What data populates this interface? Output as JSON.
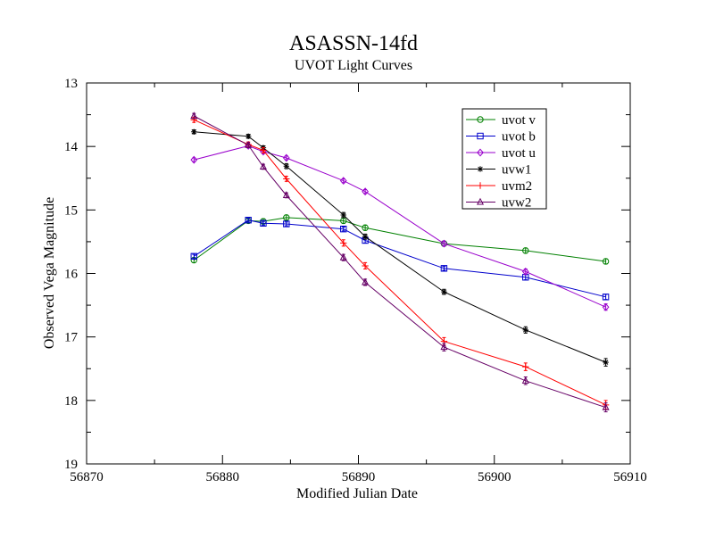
{
  "chart_data": {
    "type": "line",
    "title": "ASASSN-14fd",
    "subtitle": "UVOT Light Curves",
    "xlabel": "Modified Julian Date",
    "ylabel": "Observed Vega Magnitude",
    "xlim": [
      56870,
      56910
    ],
    "ylim": [
      13,
      19
    ],
    "y_inverted": true,
    "x_ticks": [
      56870,
      56880,
      56890,
      56900,
      56910
    ],
    "y_ticks": [
      13,
      14,
      15,
      16,
      17,
      18,
      19
    ],
    "legend_position": "top-right",
    "grid": false,
    "series": [
      {
        "name": "uvot v",
        "color": "#008000",
        "marker": "circle",
        "x": [
          56877.9,
          56881.9,
          56883.0,
          56884.7,
          56888.9,
          56890.5,
          56896.3,
          56902.3,
          56908.2
        ],
        "y": [
          15.79,
          15.17,
          15.18,
          15.12,
          15.17,
          15.28,
          15.53,
          15.64,
          15.81
        ],
        "err": [
          0.04,
          0.03,
          0.04,
          0.04,
          0.04,
          0.04,
          0.04,
          0.04,
          0.04
        ]
      },
      {
        "name": "uvot b",
        "color": "#0000cc",
        "marker": "square",
        "x": [
          56877.9,
          56881.9,
          56883.0,
          56884.7,
          56888.9,
          56890.5,
          56896.3,
          56902.3,
          56908.2
        ],
        "y": [
          15.73,
          15.16,
          15.21,
          15.22,
          15.3,
          15.48,
          15.92,
          16.06,
          16.37
        ],
        "err": [
          0.03,
          0.03,
          0.03,
          0.03,
          0.03,
          0.04,
          0.03,
          0.04,
          0.04
        ]
      },
      {
        "name": "uvot u",
        "color": "#9900cc",
        "marker": "diamond",
        "x": [
          56877.9,
          56881.9,
          56883.0,
          56884.7,
          56888.9,
          56890.5,
          56896.3,
          56902.3,
          56908.2
        ],
        "y": [
          14.21,
          13.99,
          14.08,
          14.18,
          14.54,
          14.71,
          15.53,
          15.97,
          16.53
        ],
        "err": [
          0.03,
          0.03,
          0.03,
          0.03,
          0.03,
          0.03,
          0.04,
          0.04,
          0.05
        ]
      },
      {
        "name": "uvw1",
        "color": "#000000",
        "marker": "star",
        "x": [
          56877.9,
          56881.9,
          56883.0,
          56884.7,
          56888.9,
          56890.5,
          56896.3,
          56902.3,
          56908.2
        ],
        "y": [
          13.77,
          13.84,
          14.02,
          14.31,
          15.08,
          15.42,
          16.29,
          16.89,
          17.4
        ],
        "err": [
          0.03,
          0.03,
          0.03,
          0.04,
          0.04,
          0.04,
          0.04,
          0.05,
          0.06
        ]
      },
      {
        "name": "uvm2",
        "color": "#ff0000",
        "marker": "plus",
        "x": [
          56877.9,
          56881.9,
          56883.0,
          56884.7,
          56888.9,
          56890.5,
          56896.3,
          56902.3,
          56908.2
        ],
        "y": [
          13.58,
          13.97,
          14.06,
          14.51,
          15.52,
          15.88,
          17.07,
          17.47,
          18.07
        ],
        "err": [
          0.04,
          0.04,
          0.04,
          0.04,
          0.05,
          0.05,
          0.06,
          0.06,
          0.07
        ]
      },
      {
        "name": "uvw2",
        "color": "#660066",
        "marker": "triangle",
        "x": [
          56877.9,
          56881.9,
          56883.0,
          56884.7,
          56888.9,
          56890.5,
          56896.3,
          56902.3,
          56908.2
        ],
        "y": [
          13.52,
          13.98,
          14.32,
          14.77,
          15.75,
          16.14,
          17.16,
          17.69,
          18.11
        ],
        "err": [
          0.04,
          0.04,
          0.04,
          0.04,
          0.05,
          0.05,
          0.06,
          0.06,
          0.07
        ]
      }
    ]
  }
}
